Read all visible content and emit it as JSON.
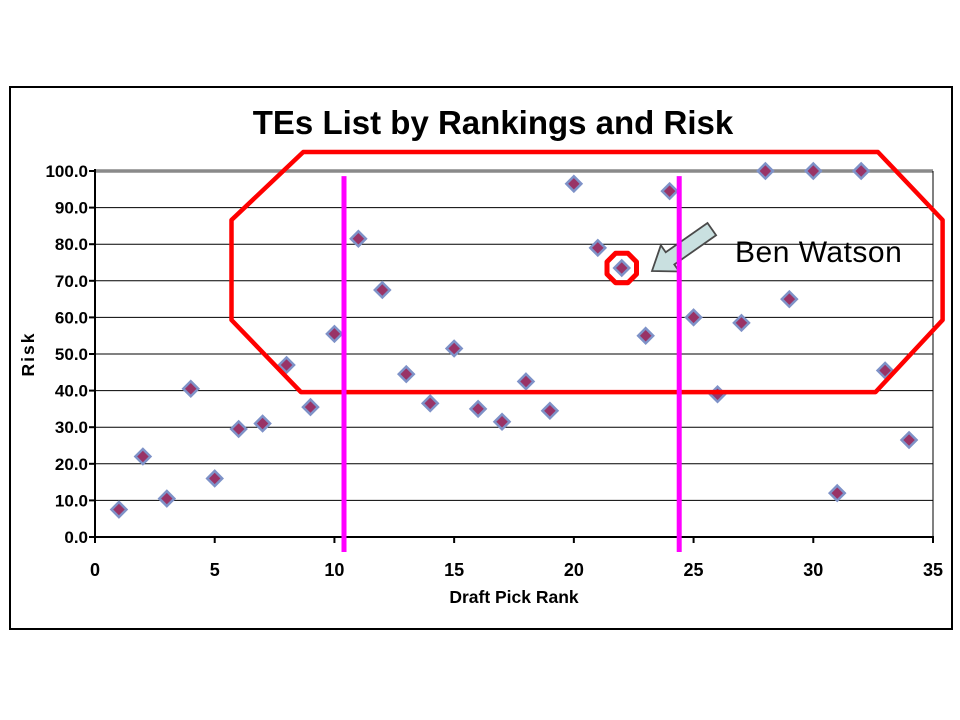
{
  "chart_data": {
    "type": "scatter",
    "title": "TEs List by Rankings and Risk",
    "xlabel": "Draft Pick Rank",
    "ylabel": "Risk",
    "xlim": [
      0,
      35
    ],
    "ylim": [
      0,
      100
    ],
    "grid": true,
    "legend": false,
    "x_ticks": [
      0,
      5,
      10,
      15,
      20,
      25,
      30,
      35
    ],
    "y_tick_labels": [
      "0.0",
      "10.0",
      "20.0",
      "30.0",
      "40.0",
      "50.0",
      "60.0",
      "70.0",
      "80.0",
      "90.0",
      "100.0"
    ],
    "points": [
      [
        1,
        7.5
      ],
      [
        2,
        22
      ],
      [
        3,
        10.5
      ],
      [
        4,
        40.5
      ],
      [
        5,
        16
      ],
      [
        6,
        29.5
      ],
      [
        7,
        31
      ],
      [
        8,
        47
      ],
      [
        9,
        35.5
      ],
      [
        10,
        55.5
      ],
      [
        11,
        81.5
      ],
      [
        12,
        67.5
      ],
      [
        13,
        44.5
      ],
      [
        14,
        36.5
      ],
      [
        15,
        51.5
      ],
      [
        16,
        35
      ],
      [
        17,
        31.5
      ],
      [
        18,
        42.5
      ],
      [
        19,
        34.5
      ],
      [
        20,
        96.5
      ],
      [
        21,
        79
      ],
      [
        22,
        73.5
      ],
      [
        23,
        55
      ],
      [
        24,
        94.5
      ],
      [
        25,
        60
      ],
      [
        26,
        39
      ],
      [
        27,
        58.5
      ],
      [
        28,
        100
      ],
      [
        29,
        65
      ],
      [
        30,
        100
      ],
      [
        31,
        12
      ],
      [
        32,
        100
      ],
      [
        33,
        45.5
      ],
      [
        34,
        26.5
      ]
    ],
    "marker": {
      "shape": "diamond",
      "fill": "#993366",
      "stroke": "#7e92c8"
    },
    "annotations": {
      "highlight_label": "Ben Watson",
      "highlighted_point": [
        22,
        73.5
      ],
      "divider_lines_x": [
        10.4,
        24.4
      ],
      "divider_lines_y_range": [
        -4.1,
        98.6
      ],
      "region_outline": [
        [
          8.7,
          105.2
        ],
        [
          32.7,
          105.2
        ],
        [
          35.4,
          86.6
        ],
        [
          35.4,
          59.3
        ],
        [
          32.6,
          39.6
        ],
        [
          8.6,
          39.6
        ],
        [
          5.7,
          59.3
        ],
        [
          5.7,
          86.6
        ]
      ],
      "colors": {
        "region": "#ff0000",
        "ring": "#ff0000",
        "divider": "#ff00ff",
        "arrow_fill": "#c9e0e0"
      }
    },
    "colors": {
      "grid": "#000000",
      "axis": "#000000",
      "plot_top_border": "#8a8a8a",
      "text": "#000000"
    }
  }
}
